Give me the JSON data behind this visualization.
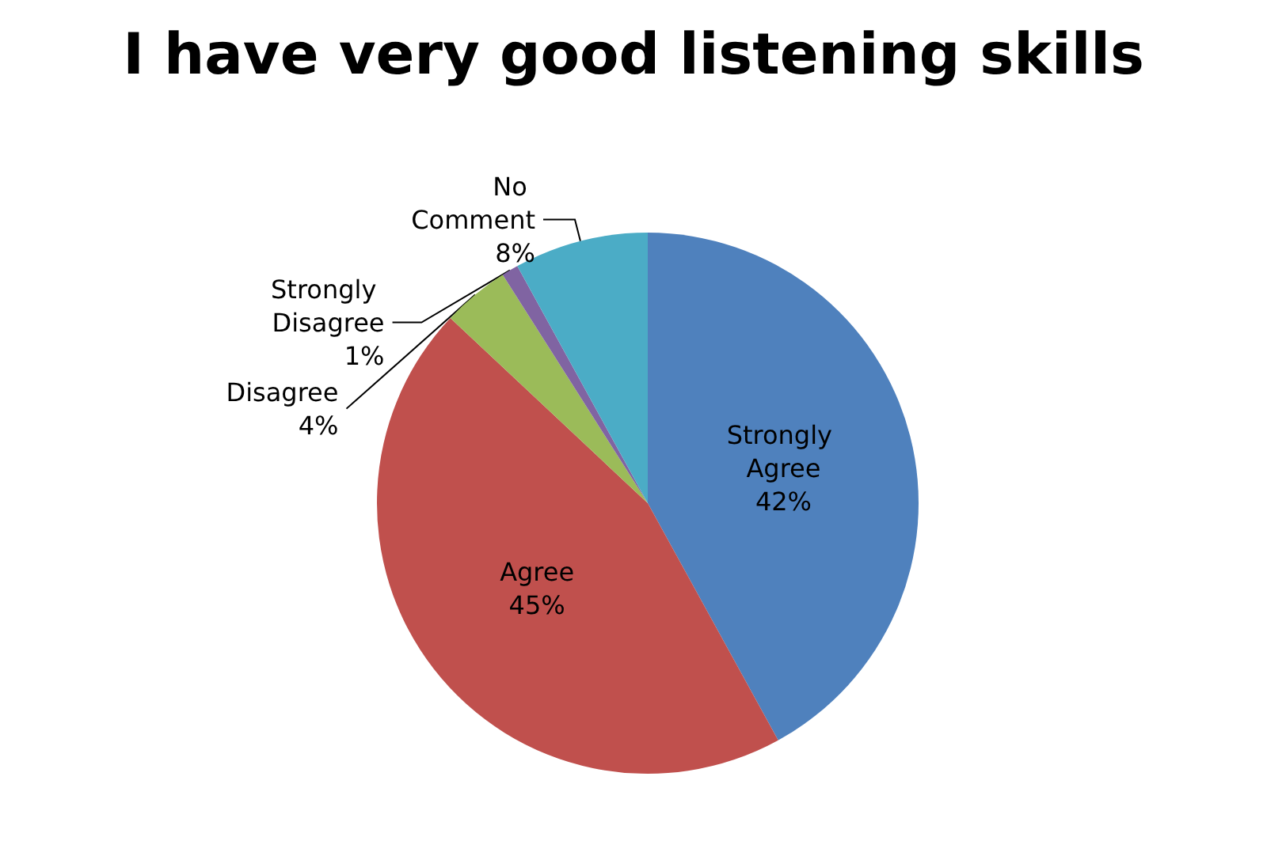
{
  "chart_data": {
    "type": "pie",
    "title": "I have very good listening skills",
    "categories": [
      "Strongly Agree",
      "Agree",
      "Disagree",
      "Strongly Disagree",
      "No Comment"
    ],
    "values": [
      42,
      45,
      4,
      1,
      8
    ],
    "value_labels": [
      "42%",
      "45%",
      "4%",
      "1%",
      "8%"
    ],
    "colors": [
      "#4f81bd",
      "#c0504d",
      "#9bbb59",
      "#8064a2",
      "#4bacc6"
    ],
    "legend": false
  }
}
